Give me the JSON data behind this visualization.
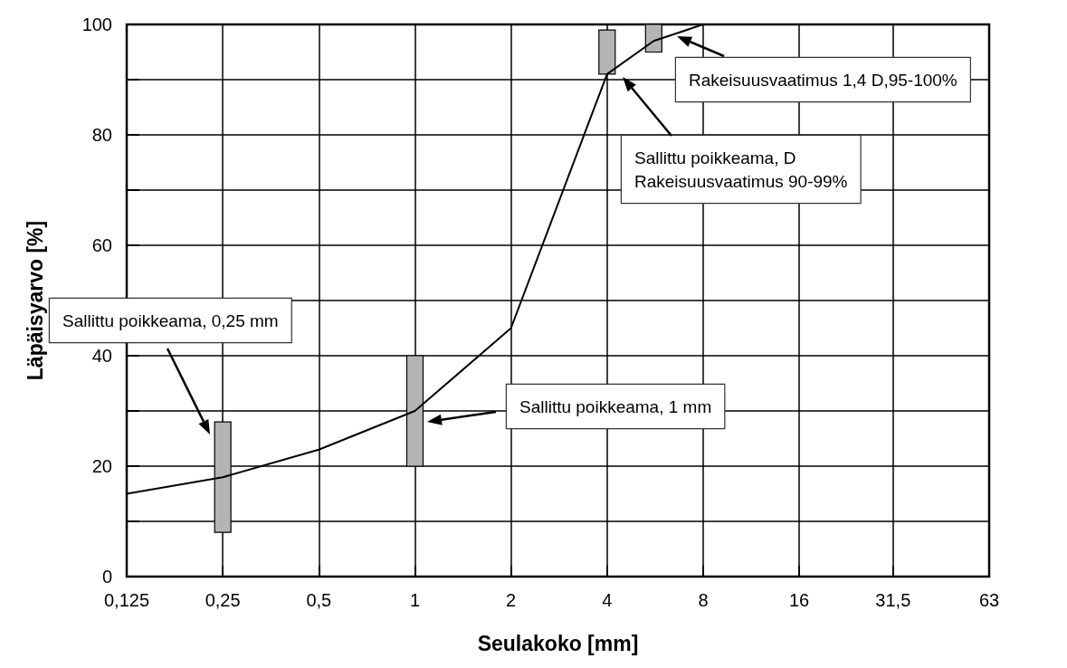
{
  "chart_data": {
    "type": "line",
    "xlabel": "Seulakoko [mm]",
    "ylabel": "Läpäisyarvo [%]",
    "log": "x",
    "grid": true,
    "marker": "none",
    "line_style": "solid",
    "xlim": [
      0.125,
      63
    ],
    "xticks": [
      {
        "value": 0.125,
        "label": "0,125"
      },
      {
        "value": 0.25,
        "label": "0,25"
      },
      {
        "value": 0.5,
        "label": "0,5"
      },
      1,
      2,
      4,
      8,
      16,
      {
        "value": 31.5,
        "label": "31,5"
      },
      63
    ],
    "ylim": [
      0,
      100
    ],
    "yticks": [
      0,
      {
        "value": 10,
        "label": null
      },
      20,
      {
        "value": 30,
        "label": null
      },
      40,
      {
        "value": 50,
        "label": null
      },
      60,
      {
        "value": 70,
        "label": null
      },
      80,
      {
        "value": 90,
        "label": null
      },
      100
    ],
    "series": [
      {
        "color": "#000000",
        "x": [
          0.125,
          0.25,
          0.5,
          1,
          2,
          4,
          5.6,
          8,
          63
        ],
        "values": [
          15,
          18,
          23,
          30,
          45,
          91,
          97,
          100,
          100
        ]
      },
      {
        "type": "bar",
        "color": "#b4b4b4",
        "x": [
          0.25,
          1,
          4,
          5.6
        ],
        "base": [
          8,
          20,
          91,
          95
        ],
        "values": [
          20,
          20,
          8,
          5
        ]
      }
    ],
    "annotations": [
      "Sallittu poikkeama, 0,25 mm",
      "Sallittu poikkeama, 1 mm",
      "Sallittu poikkeama, D\nRakeisuusvaatimus 90-99%",
      "Rakeisuusvaatimus 1,4 D,95-100%"
    ]
  }
}
